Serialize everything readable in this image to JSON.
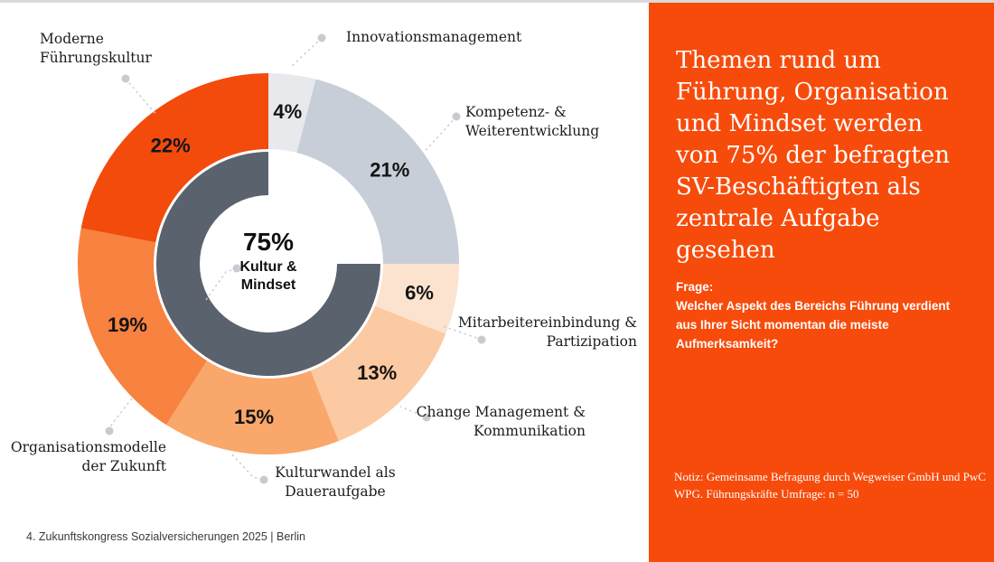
{
  "chart_data": {
    "type": "pie",
    "subtype": "donut",
    "start_angle_deg": 0,
    "direction": "clockwise",
    "categories": [
      "Innovationsmanagement",
      "Kompetenz- & Weiterentwicklung",
      "Mitarbeitereinbindung & Partizipation",
      "Change Management & Kommunikation",
      "Kulturwandel als Daueraufgabe",
      "Organisationsmodelle der Zukunft",
      "Moderne Führungskultur"
    ],
    "values": [
      4,
      21,
      6,
      13,
      15,
      19,
      22
    ],
    "segments": [
      {
        "label": "Innovationsmanagement",
        "label_lines": [
          "Innovationsmanagement"
        ],
        "value": 4,
        "pct_text": "4%",
        "color": "#e7e9ec"
      },
      {
        "label": "Kompetenz- & Weiterentwicklung",
        "label_lines": [
          "Kompetenz- &",
          "Weiterentwicklung"
        ],
        "value": 21,
        "pct_text": "21%",
        "color": "#c8ced7"
      },
      {
        "label": "Mitarbeitereinbindung & Partizipation",
        "label_lines": [
          "Mitarbeitereinbindung &",
          "Partizipation"
        ],
        "value": 6,
        "pct_text": "6%",
        "color": "#fce3cf"
      },
      {
        "label": "Change Management & Kommunikation",
        "label_lines": [
          "Change Management &",
          "Kommunikation"
        ],
        "value": 13,
        "pct_text": "13%",
        "color": "#fbc9a2"
      },
      {
        "label": "Kulturwandel als Daueraufgabe",
        "label_lines": [
          "Kulturwandel als",
          "Daueraufgabe"
        ],
        "value": 15,
        "pct_text": "15%",
        "color": "#f9a76b"
      },
      {
        "label": "Organisationsmodelle der Zukunft",
        "label_lines": [
          "Organisationsmodelle",
          "der Zukunft"
        ],
        "value": 19,
        "pct_text": "19%",
        "color": "#f8823f"
      },
      {
        "label": "Moderne Führungskultur",
        "label_lines": [
          "Moderne",
          "Führungskultur"
        ],
        "value": 22,
        "pct_text": "22%",
        "color": "#f24b0c"
      }
    ],
    "center_label": {
      "value": "75%",
      "label": "Kultur & Mindset"
    },
    "inner_ring": {
      "percent_covered": 75,
      "gap_from_deg": 0,
      "gap_to_deg": 90,
      "color": "#5a626e"
    },
    "legend": "callout-labels-with-leader-lines",
    "leader_line_color": "#c7cbd1"
  },
  "panel": {
    "background_color": "#f74b0b",
    "text_color": "#ffffff",
    "title": "Themen rund um Führung, Organisation und Mindset werden von 75% der befragten SV-Beschäftigten als zentrale Aufgabe gesehen",
    "title_lines": [
      "Themen rund um",
      "Führung, Organisation",
      "und Mindset werden",
      "von 75% der befragten",
      "SV-Beschäftigten als",
      "zentrale Aufgabe",
      "gesehen"
    ],
    "question_lines": [
      "Frage:",
      "Welcher Aspekt des Bereichs Führung verdient",
      "aus Ihrer Sicht momentan die meiste",
      "Aufmerksamkeit?"
    ],
    "note_lines": [
      "Notiz: Gemeinsame Befragung durch Wegweiser GmbH und PwC",
      "WPG. Führungskräfte Umfrage: n = 50"
    ]
  },
  "footer": {
    "text": "4. Zukunftskongress Sozialversicherungen 2025 | Berlin"
  }
}
